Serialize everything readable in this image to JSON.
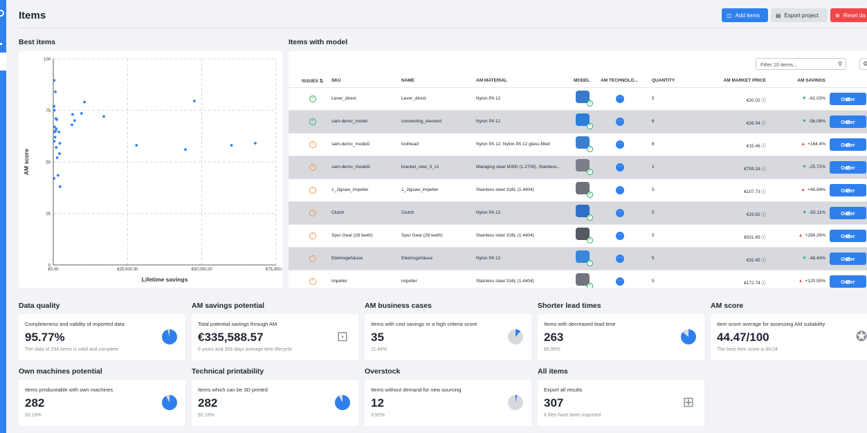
{
  "page": {
    "title": "Items"
  },
  "actions": {
    "add_label": "Add items",
    "export_label": "Export project",
    "reset_label": "Reset da"
  },
  "best_items": {
    "title": "Best items",
    "chart_data": {
      "type": "scatter",
      "xlabel": "Lifetime savings",
      "ylabel": "AM score",
      "xlim": [
        0,
        75000
      ],
      "ylim": [
        0,
        100
      ],
      "x_ticks": [
        "€0.00",
        "€25,000.00",
        "€50,000.00",
        "€75,000.00"
      ],
      "y_ticks": [
        "0",
        "25",
        "50",
        "75",
        "100"
      ],
      "grid": true,
      "points": [
        [
          300,
          89.5
        ],
        [
          700,
          84
        ],
        [
          250,
          77
        ],
        [
          300,
          75
        ],
        [
          900,
          71
        ],
        [
          1200,
          70.5
        ],
        [
          400,
          67
        ],
        [
          800,
          65
        ],
        [
          400,
          64.5
        ],
        [
          1000,
          66
        ],
        [
          1900,
          64.5
        ],
        [
          600,
          62
        ],
        [
          300,
          60
        ],
        [
          2200,
          59
        ],
        [
          1000,
          57
        ],
        [
          2100,
          54
        ],
        [
          1300,
          52
        ],
        [
          250,
          42
        ],
        [
          1600,
          43.5
        ],
        [
          2300,
          38
        ],
        [
          6500,
          73
        ],
        [
          6300,
          68
        ],
        [
          7200,
          70
        ],
        [
          9500,
          73.5
        ],
        [
          10500,
          79
        ],
        [
          17000,
          72
        ],
        [
          28000,
          58
        ],
        [
          44500,
          56
        ],
        [
          47500,
          79.5
        ],
        [
          60000,
          58
        ],
        [
          68000,
          59
        ]
      ]
    }
  },
  "items_with_model": {
    "title": "Items with model",
    "filter_placeholder": "Filter 10 items...",
    "columns": [
      "ISSUES ⇅",
      "SKU",
      "NAME",
      "AM MATERIAL",
      "MODEL",
      "AM TECHNOLO...",
      "QUANTITY",
      "AM MARKET PRICE",
      "AM SAVINGS"
    ],
    "order_label": "Order",
    "rows": [
      {
        "status": "ok",
        "sku": "Lever_direct",
        "name": "Lever_direct",
        "material": "Nylon PA 12",
        "qty": "5",
        "price": "€20.02",
        "dir": "down",
        "savings": "-81.03%",
        "model_color": "#3a78c9"
      },
      {
        "status": "ok",
        "sku": "sam-demo_model",
        "name": "connecting_element",
        "material": "Nylon PA 12",
        "qty": "6",
        "price": "€26.54",
        "dir": "down",
        "savings": "-56.08%",
        "model_color": "#2a7fd8"
      },
      {
        "status": "warn",
        "sku": "sam-demo_model2",
        "name": "toolhead",
        "material": "Nylon PA 12, Nylon PA 12 glass-filled",
        "qty": "8",
        "price": "€15.46",
        "dir": "up",
        "savings": "+164.4%",
        "model_color": "#3b7fd0"
      },
      {
        "status": "warn",
        "sku": "sam-demo_model3",
        "name": "bracket_new_3_v1",
        "material": "Maraging steel M300 (1.2709), Stainless...",
        "qty": "1",
        "price": "€759.18",
        "dir": "down",
        "savings": "-25.72%",
        "model_color": "#7a7f89"
      },
      {
        "status": "warn",
        "sku": "1_Jigsaw_impeller",
        "name": "1_Jigsaw_impeller",
        "material": "Stainless steel 316L (1.4404)",
        "qty": "5",
        "price": "€107.73",
        "dir": "up",
        "savings": "+48.94%",
        "model_color": "#6c717a"
      },
      {
        "status": "warn",
        "sku": "Clutch",
        "name": "Clutch",
        "material": "Nylon PA 12",
        "qty": "5",
        "price": "€19.62",
        "dir": "down",
        "savings": "-55.11%",
        "model_color": "#2f6fc7"
      },
      {
        "status": "warn",
        "sku": "Spur Gear (28 teeth)",
        "name": "Spur Gear (28 teeth)",
        "material": "Stainless steel 316L (1.4404)",
        "qty": "5",
        "price": "€931.65",
        "dir": "up",
        "savings": "+294.26%",
        "model_color": "#555a62"
      },
      {
        "status": "warn",
        "sku": "Elektrogehäuse",
        "name": "Elektrogehäuse",
        "material": "Nylon PA 12",
        "qty": "5",
        "price": "€32.45",
        "dir": "down",
        "savings": "-48.43%",
        "model_color": "#3b86d8"
      },
      {
        "status": "warn",
        "sku": "impeller",
        "name": "impeller",
        "material": "Stainless steel 316L (1.4404)",
        "qty": "5",
        "price": "€172.74",
        "dir": "up",
        "savings": "+120.55%",
        "model_color": "#70757e"
      }
    ]
  },
  "kpis": [
    {
      "title": "Data quality",
      "sub": "Completeness and validity of imported data",
      "value": "95.77%",
      "foot": "The data of 294 items is valid and complete",
      "visual": "pie",
      "fraction": 0.9577
    },
    {
      "title": "AM savings potential",
      "sub": "Total potential savings through AM",
      "value": "€335,588.57",
      "foot": "5 years and 359 days average item lifecycle",
      "visual": "money-icon"
    },
    {
      "title": "AM business cases",
      "sub": "Items with cost savings or a high criteria score",
      "value": "35",
      "foot": "11.44%",
      "visual": "pie",
      "fraction": 0.1144
    },
    {
      "title": "Shorter lead times",
      "sub": "Items with decreased lead time",
      "value": "263",
      "foot": "85.95%",
      "visual": "pie",
      "fraction": 0.8595
    },
    {
      "title": "AM score",
      "sub": "Item score average for assessing AM suitability",
      "value": "44.47/100",
      "foot": "The best item score is 89.04",
      "visual": "award-icon"
    },
    {
      "title": "Own machines potential",
      "sub": "Items produceable with own machines",
      "value": "282",
      "foot": "92.16%",
      "visual": "pie",
      "fraction": 0.9216
    },
    {
      "title": "Technical printability",
      "sub": "Items which can be 3D printed",
      "value": "282",
      "foot": "92.16%",
      "visual": "pie",
      "fraction": 0.9216
    },
    {
      "title": "Overstock",
      "sub": "Items without demand for new sourcing",
      "value": "12",
      "foot": "3.92%",
      "visual": "pie",
      "fraction": 0.0392
    },
    {
      "title": "All items",
      "sub": "Export all results",
      "value": "307",
      "foot": "8 files have been imported",
      "visual": "export-icon"
    }
  ]
}
